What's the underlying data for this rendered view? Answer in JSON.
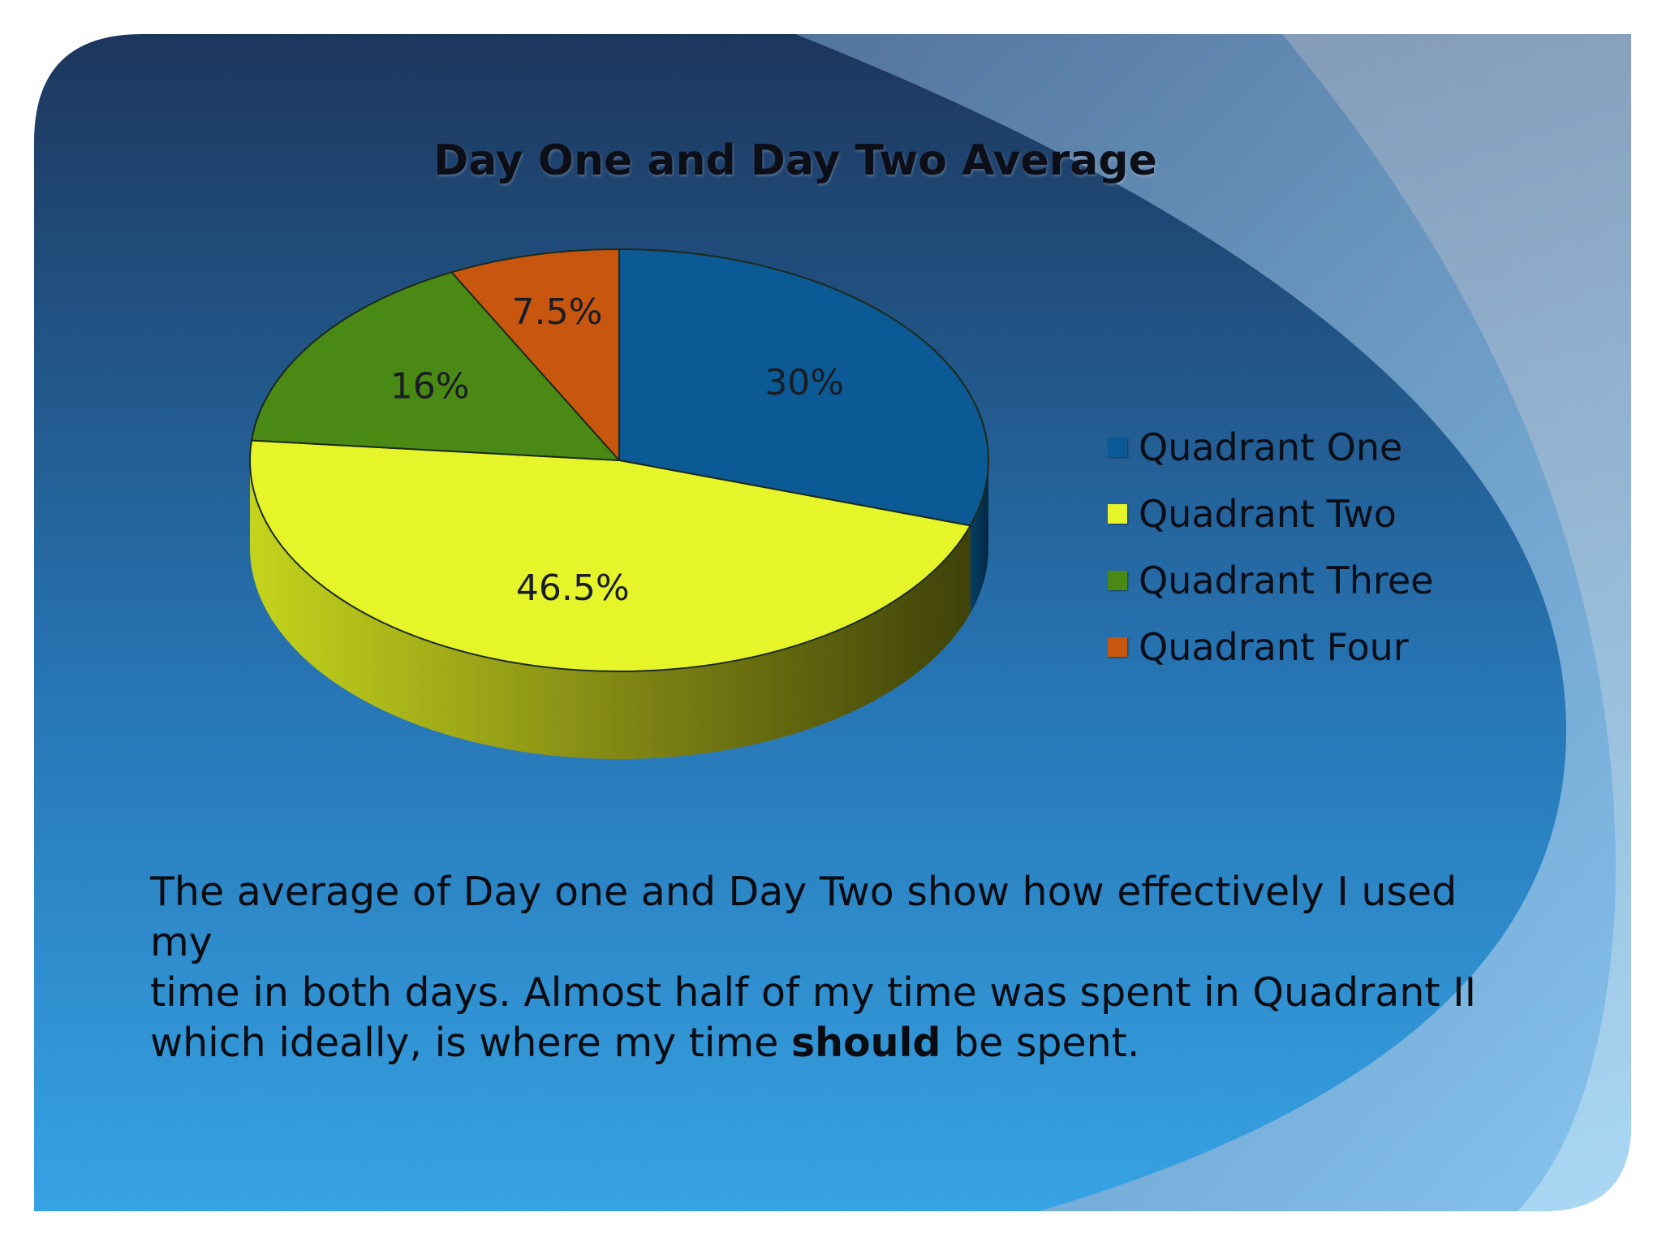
{
  "chart_data": {
    "type": "pie",
    "title": "Day One and Day Two Average",
    "slices": [
      {
        "label": "Quadrant One",
        "value": 30,
        "display": "30%",
        "color": "#0b5a95"
      },
      {
        "label": "Quadrant Two",
        "value": 46.5,
        "display": "46.5%",
        "color": "#e6f52a"
      },
      {
        "label": "Quadrant Three",
        "value": 16,
        "display": "16%",
        "color": "#4a8a14"
      },
      {
        "label": "Quadrant Four",
        "value": 7.5,
        "display": "7.5%",
        "color": "#c9560e"
      }
    ],
    "legend_position": "right",
    "style": "3d"
  },
  "text": {
    "line1": "The average of Day one and Day Two show how effectively I used my",
    "line2": "time in both days. Almost half of my time was spent in Quadrant II",
    "line3_before": "which ideally, is where my time ",
    "line3_bold": "should",
    "line3_after": " be spent."
  },
  "colors": {
    "background_top": "#1c3358",
    "background_bottom": "#37a5e6"
  }
}
